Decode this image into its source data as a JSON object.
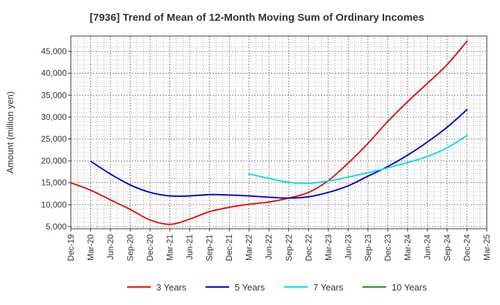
{
  "chart_data": {
    "type": "line",
    "title": "[7936]  Trend of Mean of 12-Month Moving Sum of Ordinary Incomes",
    "xlabel": "",
    "ylabel": "Amount (million yen)",
    "ylim": [
      4500,
      48500
    ],
    "yticks": [
      5000,
      10000,
      15000,
      20000,
      25000,
      30000,
      35000,
      40000,
      45000
    ],
    "ytick_labels": [
      "5,000",
      "10,000",
      "15,000",
      "20,000",
      "25,000",
      "30,000",
      "35,000",
      "40,000",
      "45,000"
    ],
    "x_categories": [
      "Dec-19",
      "Mar-20",
      "Jun-20",
      "Sep-20",
      "Dec-20",
      "Mar-21",
      "Jun-21",
      "Sep-21",
      "Dec-21",
      "Mar-22",
      "Jun-22",
      "Sep-22",
      "Dec-22",
      "Mar-23",
      "Jun-23",
      "Sep-23",
      "Dec-23",
      "Mar-24",
      "Jun-24",
      "Sep-24",
      "Dec-24",
      "Mar-25"
    ],
    "series": [
      {
        "name": "3 Years",
        "color": "#dd1111",
        "values": [
          15000,
          13300,
          11100,
          8900,
          6500,
          5500,
          6700,
          8400,
          9400,
          10100,
          10600,
          11500,
          12800,
          15500,
          19500,
          24000,
          29000,
          33500,
          37700,
          42000,
          47300,
          null
        ]
      },
      {
        "name": "5 Years",
        "color": "#0000cc",
        "values": [
          null,
          19900,
          17000,
          14500,
          12800,
          12000,
          12000,
          12300,
          12200,
          12000,
          11700,
          11500,
          11800,
          12800,
          14300,
          16500,
          18700,
          21300,
          24300,
          27700,
          31700,
          null
        ]
      },
      {
        "name": "7 Years",
        "color": "#00dddd",
        "values": [
          null,
          null,
          null,
          null,
          null,
          null,
          null,
          null,
          null,
          17000,
          16000,
          15100,
          14900,
          15400,
          16300,
          17300,
          18400,
          19600,
          21000,
          23000,
          25800,
          null
        ]
      },
      {
        "name": "10 Years",
        "color": "#228822",
        "values": [
          null,
          null,
          null,
          null,
          null,
          null,
          null,
          null,
          null,
          null,
          null,
          null,
          null,
          null,
          null,
          null,
          null,
          null,
          null,
          null,
          null,
          null
        ]
      }
    ],
    "grid": true,
    "legend_position": "bottom"
  }
}
